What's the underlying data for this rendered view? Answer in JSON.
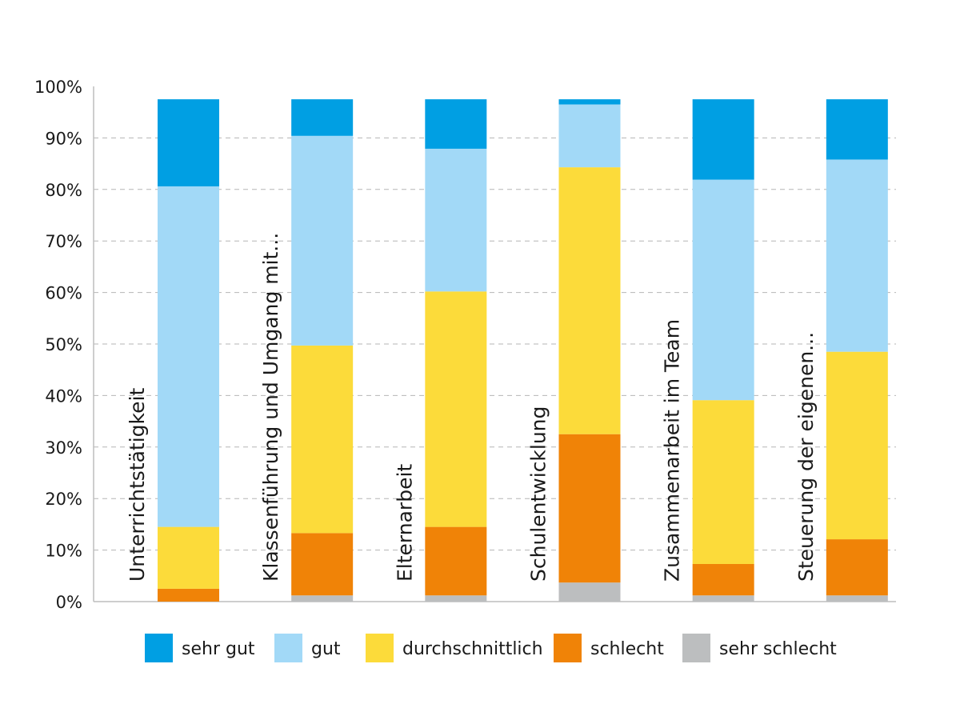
{
  "chart_data": {
    "type": "bar",
    "stacked": true,
    "orientation": "vertical",
    "categories": [
      "Unterrichtstätigkeit",
      "Klassenführung und Umgang mit...",
      "Elternarbeit",
      "Schulentwicklung",
      "Zusammenarbeit im Team",
      "Steuerung der eigenen..."
    ],
    "series": [
      {
        "name": "sehr schlecht",
        "color": "#bcbebf",
        "values": [
          0,
          1.2,
          1.2,
          3.7,
          1.2,
          1.2
        ]
      },
      {
        "name": "schlecht",
        "color": "#f08307",
        "values": [
          2.5,
          12.1,
          13.3,
          28.8,
          6.1,
          10.9
        ]
      },
      {
        "name": "durchschnittlich",
        "color": "#fcdb3a",
        "values": [
          12.0,
          36.4,
          45.7,
          51.8,
          31.8,
          36.4
        ]
      },
      {
        "name": "gut",
        "color": "#a2d9f7",
        "values": [
          66.1,
          40.7,
          27.7,
          12.2,
          42.8,
          37.3
        ]
      },
      {
        "name": "sehr gut",
        "color": "#009fe3",
        "values": [
          16.9,
          7.1,
          9.6,
          1.0,
          15.6,
          11.7
        ]
      }
    ],
    "legend_order": [
      "sehr gut",
      "gut",
      "durchschnittlich",
      "schlecht",
      "sehr schlecht"
    ],
    "ylim": [
      0,
      100
    ],
    "yticks": [
      "0%",
      "10%",
      "20%",
      "30%",
      "40%",
      "50%",
      "60%",
      "70%",
      "80%",
      "90%",
      "100%"
    ],
    "grid": "horizontal-dashed",
    "legend_position": "bottom",
    "title": "",
    "xlabel": "",
    "ylabel": ""
  }
}
